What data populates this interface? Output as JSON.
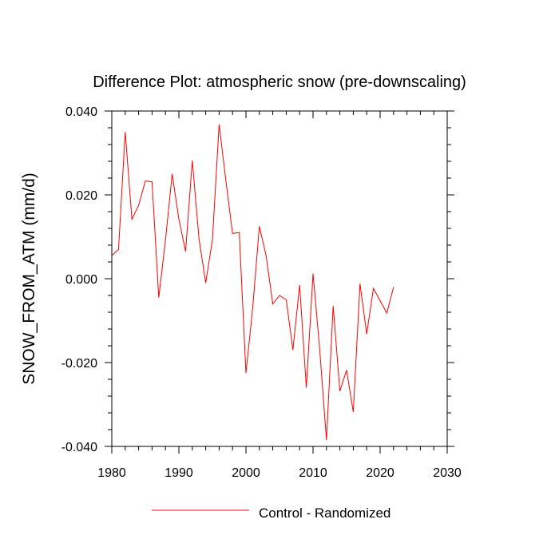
{
  "chart_data": {
    "type": "line",
    "title": "Difference Plot: atmospheric snow (pre-downscaling)",
    "xlabel": "",
    "ylabel": "SNOW_FROM_ATM  (mm/d)",
    "xlim": [
      1980,
      2030
    ],
    "ylim": [
      -0.04,
      0.04
    ],
    "xticks": [
      1980,
      1990,
      2000,
      2010,
      2020,
      2030
    ],
    "xtick_labels": [
      "1980",
      "1990",
      "2000",
      "2010",
      "2020",
      "2030"
    ],
    "yticks": [
      -0.04,
      -0.02,
      0.0,
      0.02,
      0.04
    ],
    "ytick_labels": [
      "-0.040",
      "-0.020",
      "0.000",
      "0.020",
      "0.040"
    ],
    "grid": false,
    "legend_position": "bottom-center",
    "series": [
      {
        "name": "Control - Randomized",
        "color": "#ff0000",
        "x": [
          1980,
          1981,
          1982,
          1983,
          1984,
          1985,
          1986,
          1987,
          1988,
          1989,
          1990,
          1991,
          1992,
          1993,
          1994,
          1995,
          1996,
          1997,
          1998,
          1999,
          2000,
          2001,
          2002,
          2003,
          2004,
          2005,
          2006,
          2007,
          2008,
          2009,
          2010,
          2011,
          2012,
          2013,
          2014,
          2015,
          2016,
          2017,
          2018,
          2019,
          2021,
          2022
        ],
        "values": [
          0.0055,
          0.007,
          0.035,
          0.0142,
          0.0175,
          0.0233,
          0.0231,
          -0.0045,
          0.0092,
          0.025,
          0.0142,
          0.0065,
          0.0282,
          0.0095,
          -0.001,
          0.0093,
          0.0368,
          0.0235,
          0.0108,
          0.011,
          -0.0225,
          -0.007,
          0.0125,
          0.0055,
          -0.006,
          -0.004,
          -0.005,
          -0.017,
          -0.0015,
          -0.026,
          0.0012,
          -0.017,
          -0.0385,
          -0.0065,
          -0.0268,
          -0.0218,
          -0.0318,
          -0.0012,
          -0.0132,
          -0.0023,
          -0.0082,
          -0.002
        ]
      }
    ]
  }
}
